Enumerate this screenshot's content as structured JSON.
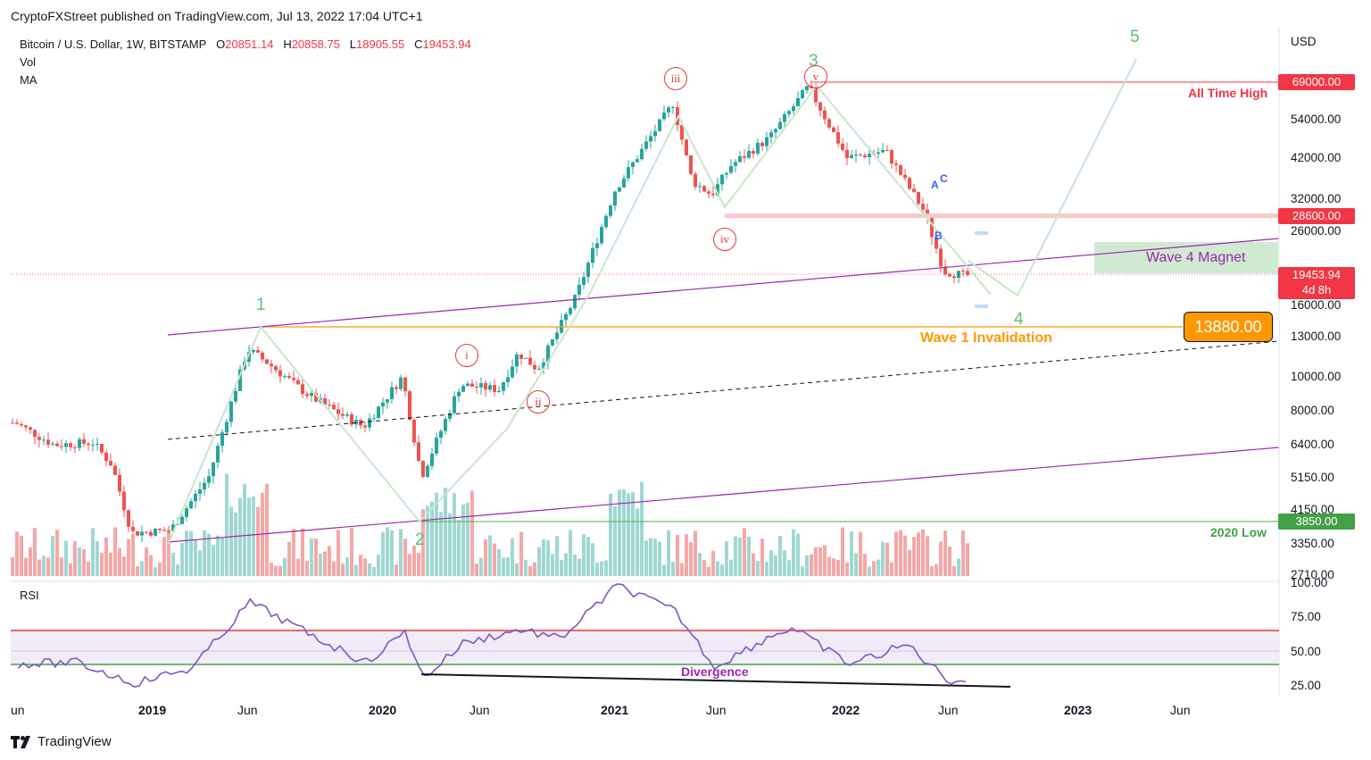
{
  "header": {
    "publisher": "CryptoFXStreet published on TradingView.com, Jul 13, 2022 17:04 UTC+1"
  },
  "legend": {
    "symbol": "Bitcoin / U.S. Dollar, 1W, BITSTAMP",
    "open_label": "O",
    "open": "20851.14",
    "high_label": "H",
    "high": "20858.75",
    "low_label": "L",
    "low": "18905.55",
    "close_label": "C",
    "close": "19453.94",
    "vol": "Vol",
    "ma": "MA",
    "rsi": "RSI"
  },
  "price_axis": {
    "currency": "USD",
    "ticks": [
      "54000.00",
      "42000.00",
      "32000.00",
      "26000.00",
      "16000.00",
      "13000.00",
      "10000.00",
      "8000.00",
      "6400.00",
      "5150.00",
      "4150.00",
      "3350.00",
      "2710.00"
    ]
  },
  "rsi_axis": {
    "ticks": [
      "100.00",
      "75.00",
      "50.00",
      "25.00"
    ]
  },
  "time_axis": {
    "labels": [
      {
        "text": "un",
        "bold": false
      },
      {
        "text": "2019",
        "bold": true
      },
      {
        "text": "Jun",
        "bold": false
      },
      {
        "text": "2020",
        "bold": true
      },
      {
        "text": "Jun",
        "bold": false
      },
      {
        "text": "2021",
        "bold": true
      },
      {
        "text": "Jun",
        "bold": false
      },
      {
        "text": "2022",
        "bold": true
      },
      {
        "text": "Jun",
        "bold": false
      },
      {
        "text": "2023",
        "bold": true
      },
      {
        "text": "Jun",
        "bold": false
      }
    ]
  },
  "price_tags": {
    "ath": "69000.00",
    "resistance": "28600.00",
    "last": "19453.94",
    "countdown": "4d 8h",
    "invalidation": "13880.00",
    "low_2020": "3850.00"
  },
  "annotations": {
    "all_time_high": "All Time High",
    "wave4_magnet": "Wave 4 Magnet",
    "wave1_invalidation": "Wave 1 Invalidation",
    "low_2020": "2020 Low",
    "divergence": "Divergence"
  },
  "waves": {
    "w1": "1",
    "w2": "2",
    "w3": "3",
    "w4": "4",
    "w5": "5",
    "i": "i",
    "ii": "ii",
    "iii": "iii",
    "iv": "iv",
    "v": "v",
    "a": "A",
    "b": "B",
    "c": "C"
  },
  "footer": {
    "brand": "TradingView",
    "logo": "tradingview-logo-icon"
  },
  "colors": {
    "bull": "#26a69a",
    "bear": "#ef5350",
    "wave_line": "#c8e6c9",
    "channel": "#9c27b0",
    "invalidation": "#ff9800",
    "ath": "#f23645",
    "low": "#4caf50",
    "rsi": "#7e57c2",
    "rsi_upper": "#e53935",
    "rsi_lower": "#43a047"
  },
  "chart_data": {
    "type": "candlestick",
    "symbol": "BTCUSD",
    "timeframe": "1W",
    "x_range": [
      "2018-06",
      "2023-08"
    ],
    "y_scale": "log",
    "ylim": [
      2710,
      69000
    ],
    "price_path": [
      [
        "2018-06",
        7400
      ],
      [
        "2018-08",
        6400
      ],
      [
        "2018-10",
        6500
      ],
      [
        "2018-11",
        5600
      ],
      [
        "2018-12",
        3600
      ],
      [
        "2019-02",
        3650
      ],
      [
        "2019-04",
        5200
      ],
      [
        "2019-06",
        12000
      ],
      [
        "2019-07",
        11000
      ],
      [
        "2019-09",
        9000
      ],
      [
        "2019-10",
        8300
      ],
      [
        "2019-12",
        7200
      ],
      [
        "2020-02",
        10000
      ],
      [
        "2020-03",
        5200
      ],
      [
        "2020-05",
        9500
      ],
      [
        "2020-07",
        9200
      ],
      [
        "2020-08",
        11700
      ],
      [
        "2020-09",
        10500
      ],
      [
        "2020-11",
        17000
      ],
      [
        "2021-01",
        34000
      ],
      [
        "2021-04",
        60000
      ],
      [
        "2021-05",
        36000
      ],
      [
        "2021-06",
        33000
      ],
      [
        "2021-07",
        40000
      ],
      [
        "2021-09",
        48000
      ],
      [
        "2021-11",
        67000
      ],
      [
        "2022-01",
        42000
      ],
      [
        "2022-03",
        44000
      ],
      [
        "2022-05",
        29500
      ],
      [
        "2022-06",
        20000
      ],
      [
        "2022-07",
        19453.94
      ]
    ],
    "projection": [
      [
        "2022-07",
        19453.94
      ],
      [
        "2022-09",
        17000
      ],
      [
        "2023-04",
        67000
      ]
    ],
    "levels": [
      {
        "name": "All Time High",
        "value": 69000
      },
      {
        "name": "resistance",
        "value": 28600
      },
      {
        "name": "Wave 1 Invalidation",
        "value": 13880
      },
      {
        "name": "2020 Low",
        "value": 3850
      }
    ],
    "rsi": {
      "ylim": [
        0,
        100
      ],
      "upper": 70,
      "mid": 50,
      "lower": 41,
      "path": [
        [
          "2018-06",
          40
        ],
        [
          "2018-09",
          41
        ],
        [
          "2018-12",
          26
        ],
        [
          "2019-03",
          37
        ],
        [
          "2019-06",
          85
        ],
        [
          "2019-09",
          62
        ],
        [
          "2019-12",
          41
        ],
        [
          "2020-02",
          63
        ],
        [
          "2020-03",
          30
        ],
        [
          "2020-05",
          55
        ],
        [
          "2020-08",
          65
        ],
        [
          "2020-10",
          58
        ],
        [
          "2021-01",
          97
        ],
        [
          "2021-04",
          78
        ],
        [
          "2021-06",
          38
        ],
        [
          "2021-09",
          61
        ],
        [
          "2021-10",
          66
        ],
        [
          "2022-01",
          40
        ],
        [
          "2022-04",
          54
        ],
        [
          "2022-06",
          29
        ],
        [
          "2022-07",
          27
        ]
      ]
    }
  }
}
